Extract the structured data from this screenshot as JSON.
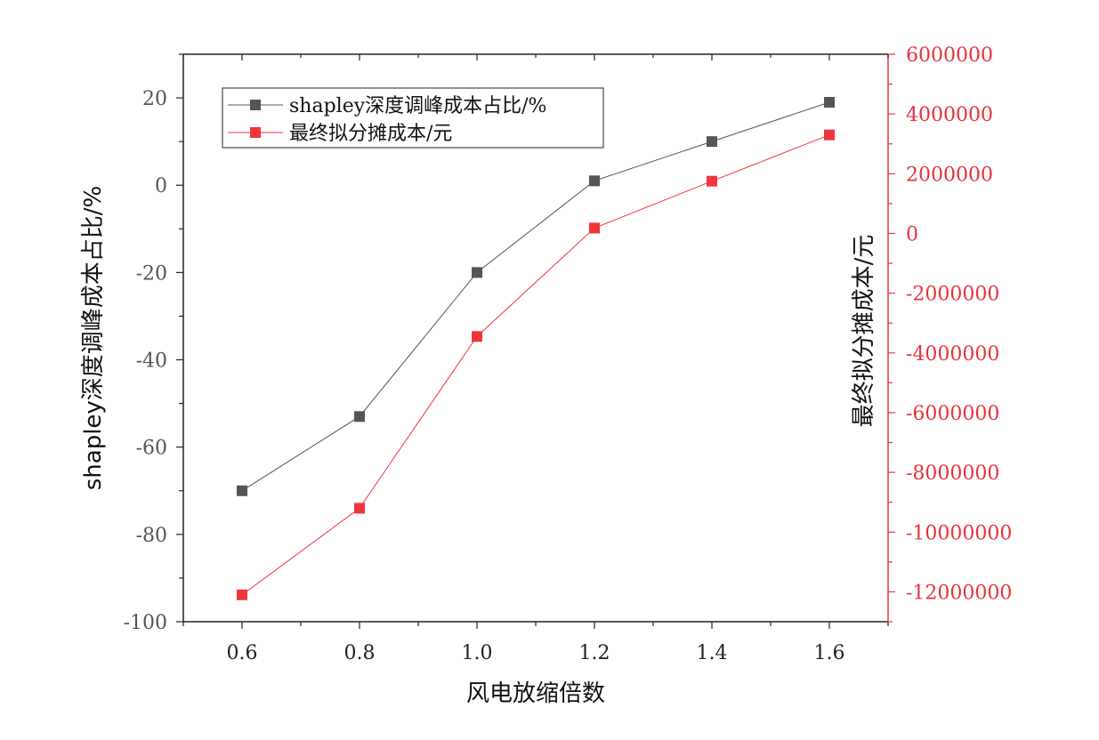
{
  "chart_data": {
    "type": "line",
    "x": [
      0.6,
      0.8,
      1.0,
      1.2,
      1.4,
      1.6
    ],
    "x_tick_labels": [
      "0.6",
      "0.8",
      "1.0",
      "1.2",
      "1.4",
      "1.6"
    ],
    "xlim": [
      0.5,
      1.7
    ],
    "xlabel": "风电放缩倍数",
    "ylabel_left": "shapley深度调峰成本占比/%",
    "ylabel_right": "最终拟分摊成本/元",
    "ylim_left": [
      -100,
      30
    ],
    "ylim_right": [
      -13000000,
      6000000
    ],
    "y_left_tick_labels": [
      "20",
      "0",
      "-20",
      "-40",
      "-60",
      "-80",
      "-100"
    ],
    "y_right_tick_labels": [
      "6000000",
      "4000000",
      "2000000",
      "0",
      "-2000000",
      "-4000000",
      "-6000000",
      "-8000000",
      "-10000000",
      "-12000000"
    ],
    "series": [
      {
        "name": "shapley深度调峰成本占比/%",
        "axis": "left",
        "color": "#555555",
        "marker": "square",
        "values": [
          -70,
          -53,
          -20,
          1,
          10,
          19
        ]
      },
      {
        "name": "最终拟分摊成本/元",
        "axis": "right",
        "color": "#f0353c",
        "marker": "square",
        "values": [
          -12100000,
          -9200000,
          -3450000,
          180000,
          1750000,
          3300000
        ]
      }
    ],
    "legend_position": "top-left",
    "grid": false
  }
}
